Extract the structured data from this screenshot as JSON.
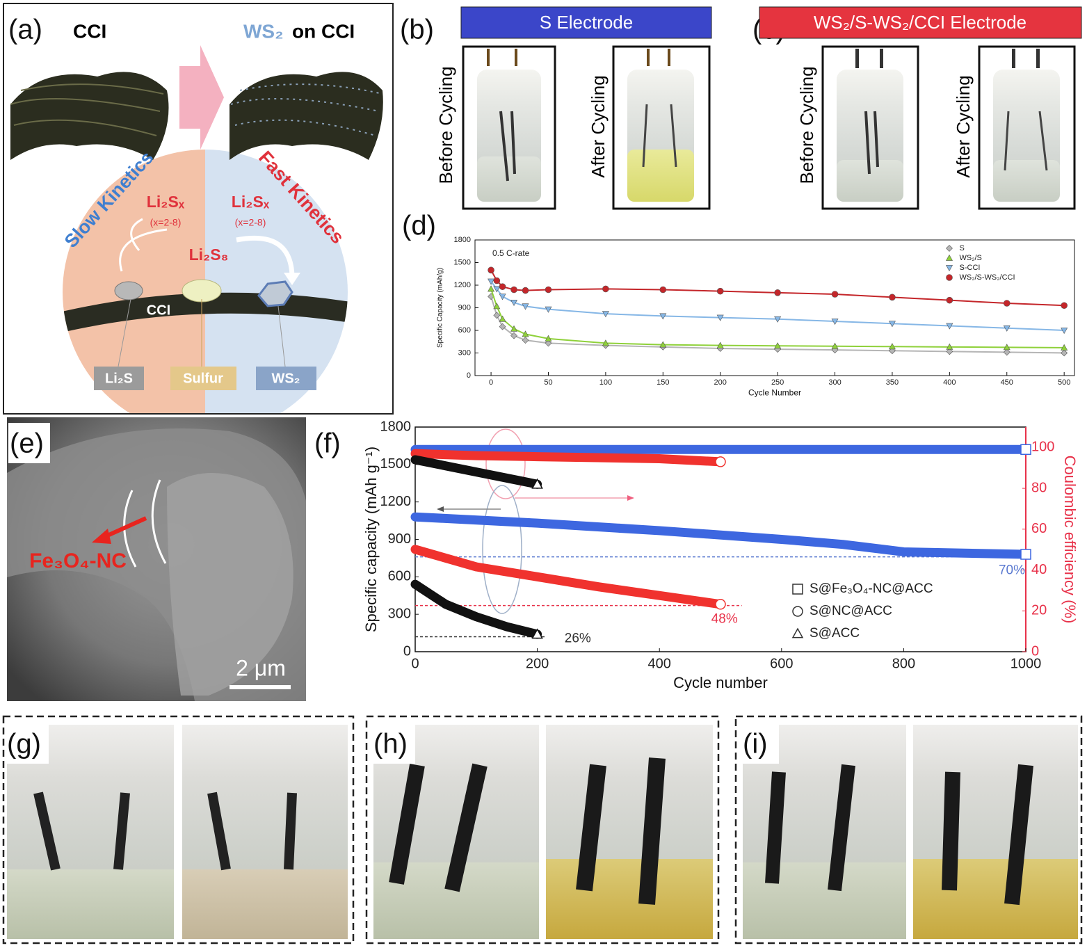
{
  "panel_a": {
    "label": "(a)",
    "left_title": "CCI",
    "right_title_ws2": "WS₂",
    "right_title_rest": "on CCI",
    "slow_kinetics": "Slow Kinetics",
    "fast_kinetics": "Fast Kinetics",
    "polysulfide_left": "Li₂Sₓ",
    "range_left": "(x=2-8)",
    "polysulfide_right": "Li₂Sₓ",
    "range_right": "(x=2-8)",
    "center_species": "Li₂S₈",
    "fiber_label": "CCI",
    "box_li2s": "Li₂S",
    "box_sulfur": "Sulfur",
    "box_ws2": "WS₂"
  },
  "panel_b": {
    "label": "(b)",
    "title": "S Electrode",
    "before": "Before Cycling",
    "after": "After Cycling"
  },
  "panel_c": {
    "label": "(c)",
    "title": "WS₂/S-WS₂/CCI Electrode",
    "before": "Before Cycling",
    "after": "After Cycling"
  },
  "panel_e": {
    "label": "(e)",
    "annotation": "Fe₃O₄-NC",
    "scale_bar": "2 μm"
  },
  "panel_g": {
    "label": "(g)"
  },
  "panel_h": {
    "label": "(h)"
  },
  "panel_i": {
    "label": "(i)"
  },
  "chart_data": [
    {
      "panel_label": "(d)",
      "type": "line",
      "annotation": "0.5 C-rate",
      "xlabel": "Cycle Number",
      "ylabel": "Specific Capacity (mAh/g)",
      "xlim": [
        -14,
        509
      ],
      "ylim": [
        0,
        1800
      ],
      "xticks": [
        0,
        50,
        100,
        150,
        200,
        250,
        300,
        350,
        400,
        450,
        500
      ],
      "yticks": [
        0,
        300,
        600,
        900,
        1200,
        1500,
        1800
      ],
      "legend": "upper right",
      "series": [
        {
          "name": "S",
          "color": "#b5b5b5",
          "marker": "diamond",
          "x": [
            0,
            5,
            10,
            20,
            30,
            50,
            100,
            150,
            200,
            250,
            300,
            350,
            400,
            450,
            500
          ],
          "values": [
            1050,
            800,
            650,
            530,
            470,
            430,
            400,
            380,
            360,
            350,
            340,
            330,
            320,
            310,
            300
          ]
        },
        {
          "name": "WS₂/S",
          "color": "#8fd13a",
          "marker": "triangle-up",
          "x": [
            0,
            5,
            10,
            20,
            30,
            50,
            100,
            150,
            200,
            250,
            300,
            350,
            400,
            450,
            500
          ],
          "values": [
            1150,
            920,
            750,
            620,
            550,
            490,
            430,
            410,
            400,
            395,
            390,
            385,
            380,
            375,
            370
          ]
        },
        {
          "name": "S-CCI",
          "color": "#86b7e6",
          "marker": "triangle-down",
          "x": [
            0,
            5,
            10,
            20,
            30,
            50,
            100,
            150,
            200,
            250,
            300,
            350,
            400,
            450,
            500
          ],
          "values": [
            1250,
            1150,
            1050,
            970,
            920,
            880,
            820,
            790,
            770,
            750,
            720,
            690,
            660,
            630,
            600
          ]
        },
        {
          "name": "WS₂/S-WS₂/CCI",
          "color": "#c4262a",
          "marker": "circle",
          "x": [
            0,
            5,
            10,
            20,
            30,
            50,
            100,
            150,
            200,
            250,
            300,
            350,
            400,
            450,
            500
          ],
          "values": [
            1400,
            1260,
            1180,
            1140,
            1130,
            1140,
            1150,
            1140,
            1120,
            1100,
            1080,
            1040,
            1000,
            960,
            930
          ]
        }
      ]
    },
    {
      "panel_label": "(f)",
      "type": "line",
      "xlabel": "Cycle number",
      "ylabel": "Specific capacity (mAh g⁻¹)",
      "y2label": "Coulombic efficiency (%)",
      "xlim": [
        0,
        1000
      ],
      "ylim": [
        0,
        1800
      ],
      "y2lim": [
        0,
        110
      ],
      "xticks": [
        0,
        200,
        400,
        600,
        800,
        1000
      ],
      "yticks": [
        0,
        300,
        600,
        900,
        1200,
        1500,
        1800
      ],
      "y2ticks": [
        0,
        20,
        40,
        60,
        80,
        100
      ],
      "y2color": "#e8324a",
      "legend": "lower right",
      "series": [
        {
          "name": "S@Fe₃O₄-NC@ACC",
          "color": "#3d67e0",
          "marker": "square",
          "x": [
            0,
            200,
            400,
            600,
            700,
            800,
            1000
          ],
          "values": [
            1080,
            1030,
            970,
            900,
            860,
            800,
            780
          ]
        },
        {
          "name": "S@NC@ACC",
          "color": "#f0322e",
          "marker": "circle",
          "x": [
            0,
            100,
            200,
            300,
            400,
            500
          ],
          "values": [
            820,
            680,
            600,
            520,
            450,
            380
          ]
        },
        {
          "name": "S@ACC",
          "color": "#111111",
          "marker": "triangle-up",
          "x": [
            0,
            50,
            100,
            150,
            200
          ],
          "values": [
            540,
            380,
            280,
            200,
            140
          ]
        },
        {
          "name": "S@Fe₃O₄-NC@ACC",
          "color": "#3d67e0",
          "marker": "square",
          "axis": "y2",
          "x": [
            0,
            1000
          ],
          "values": [
            99,
            99
          ]
        },
        {
          "name": "S@NC@ACC",
          "color": "#f0322e",
          "marker": "circle",
          "axis": "y2",
          "x": [
            0,
            100,
            200,
            300,
            400,
            500
          ],
          "values": [
            97,
            96,
            95.5,
            95,
            94.5,
            93
          ]
        },
        {
          "name": "S@ACC",
          "color": "#111111",
          "marker": "triangle-up",
          "axis": "y2",
          "x": [
            0,
            100,
            200
          ],
          "values": [
            94,
            88,
            82
          ]
        }
      ],
      "reference_lines": [
        {
          "label": "70%",
          "value": 760,
          "x_end": 1000,
          "color": "#5a79d0"
        },
        {
          "label": "48%",
          "value": 370,
          "x_end": 535,
          "color": "#e8324a"
        },
        {
          "label": "26%",
          "value": 120,
          "x_end": 215,
          "color": "#333333"
        }
      ]
    }
  ]
}
